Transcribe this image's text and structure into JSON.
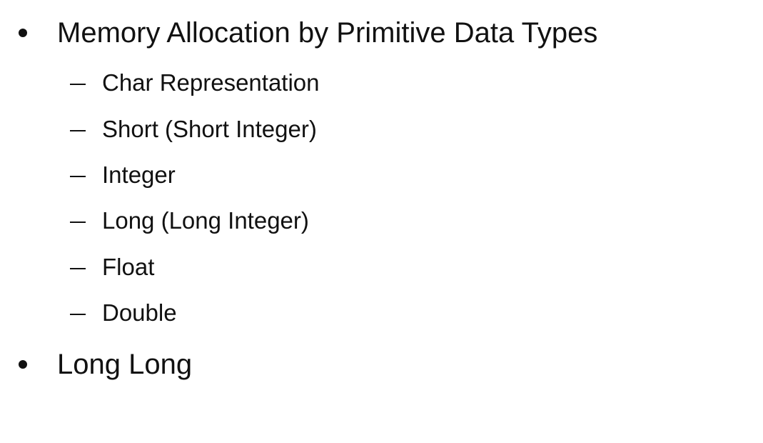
{
  "slide": {
    "bullets": [
      {
        "text": "Memory Allocation by Primitive Data Types",
        "subitems": [
          "Char Representation",
          "Short (Short Integer)",
          "Integer",
          "Long (Long Integer)",
          "Float",
          "Double"
        ]
      },
      {
        "text": "Long Long"
      }
    ]
  }
}
